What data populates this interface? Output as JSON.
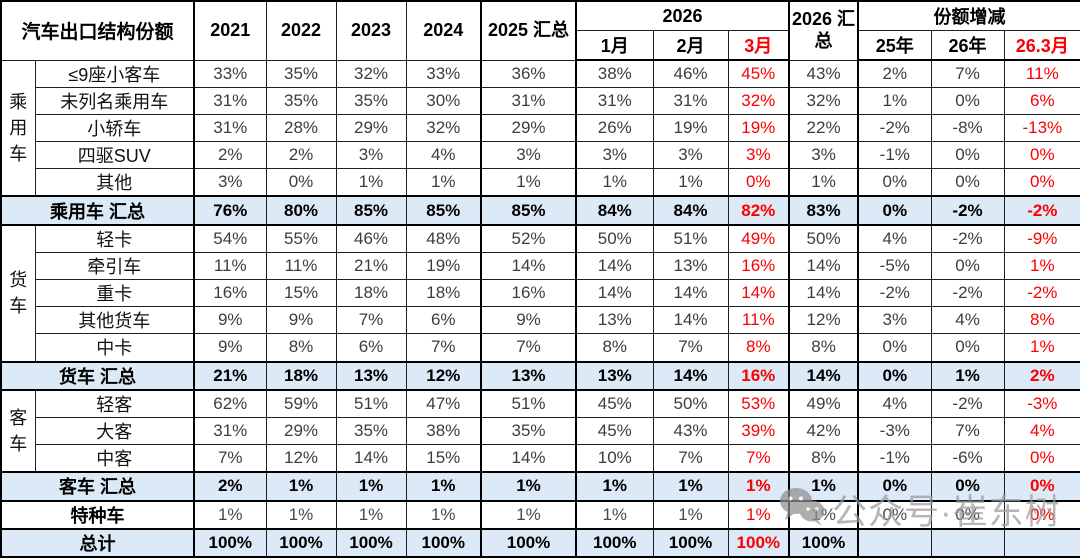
{
  "title": "汽车出口结构份额",
  "header": {
    "years": [
      "2021",
      "2022",
      "2023",
      "2024"
    ],
    "total2025": "2025 汇总",
    "group2026": "2026",
    "months": [
      "1月",
      "2月",
      "3月"
    ],
    "total2026": "2026 汇总",
    "change_group": "份额增减",
    "change_cols": [
      "25年",
      "26年",
      "26.3月"
    ]
  },
  "sections": [
    {
      "category": "乘用车",
      "rows": [
        {
          "label": "≤9座小客车",
          "values": [
            "33%",
            "35%",
            "32%",
            "33%",
            "36%",
            "38%",
            "46%",
            "45%",
            "43%",
            "2%",
            "7%",
            "11%"
          ]
        },
        {
          "label": "未列名乘用车",
          "values": [
            "31%",
            "35%",
            "35%",
            "30%",
            "31%",
            "31%",
            "31%",
            "32%",
            "32%",
            "1%",
            "0%",
            "6%"
          ]
        },
        {
          "label": "小轿车",
          "values": [
            "31%",
            "28%",
            "29%",
            "32%",
            "29%",
            "26%",
            "19%",
            "19%",
            "22%",
            "-2%",
            "-8%",
            "-13%"
          ]
        },
        {
          "label": "四驱SUV",
          "values": [
            "2%",
            "2%",
            "3%",
            "4%",
            "3%",
            "3%",
            "3%",
            "3%",
            "3%",
            "-1%",
            "0%",
            "0%"
          ]
        },
        {
          "label": "其他",
          "values": [
            "3%",
            "0%",
            "1%",
            "1%",
            "1%",
            "1%",
            "1%",
            "0%",
            "1%",
            "0%",
            "0%",
            "0%"
          ]
        }
      ],
      "summary": {
        "label": "乘用车 汇总",
        "values": [
          "76%",
          "80%",
          "85%",
          "85%",
          "85%",
          "84%",
          "84%",
          "82%",
          "83%",
          "0%",
          "-2%",
          "-2%"
        ]
      }
    },
    {
      "category": "货车",
      "rows": [
        {
          "label": "轻卡",
          "values": [
            "54%",
            "55%",
            "46%",
            "48%",
            "52%",
            "50%",
            "51%",
            "49%",
            "50%",
            "4%",
            "-2%",
            "-9%"
          ]
        },
        {
          "label": "牵引车",
          "values": [
            "11%",
            "11%",
            "21%",
            "19%",
            "14%",
            "14%",
            "13%",
            "16%",
            "14%",
            "-5%",
            "0%",
            "1%"
          ]
        },
        {
          "label": "重卡",
          "values": [
            "16%",
            "15%",
            "18%",
            "18%",
            "16%",
            "14%",
            "14%",
            "14%",
            "14%",
            "-2%",
            "-2%",
            "-2%"
          ]
        },
        {
          "label": "其他货车",
          "values": [
            "9%",
            "9%",
            "7%",
            "6%",
            "9%",
            "13%",
            "14%",
            "11%",
            "12%",
            "3%",
            "4%",
            "8%"
          ]
        },
        {
          "label": "中卡",
          "values": [
            "9%",
            "8%",
            "6%",
            "7%",
            "7%",
            "8%",
            "7%",
            "8%",
            "8%",
            "0%",
            "0%",
            "1%"
          ]
        }
      ],
      "summary": {
        "label": "货车 汇总",
        "values": [
          "21%",
          "18%",
          "13%",
          "12%",
          "13%",
          "13%",
          "14%",
          "16%",
          "14%",
          "0%",
          "1%",
          "2%"
        ]
      }
    },
    {
      "category": "客车",
      "rows": [
        {
          "label": "轻客",
          "values": [
            "62%",
            "59%",
            "51%",
            "47%",
            "51%",
            "45%",
            "50%",
            "53%",
            "49%",
            "4%",
            "-2%",
            "-3%"
          ]
        },
        {
          "label": "大客",
          "values": [
            "31%",
            "29%",
            "35%",
            "38%",
            "35%",
            "45%",
            "43%",
            "39%",
            "42%",
            "-3%",
            "7%",
            "4%"
          ]
        },
        {
          "label": "中客",
          "values": [
            "7%",
            "12%",
            "14%",
            "15%",
            "14%",
            "10%",
            "7%",
            "7%",
            "8%",
            "-1%",
            "-6%",
            "0%"
          ]
        }
      ],
      "summary": {
        "label": "客车 汇总",
        "values": [
          "2%",
          "1%",
          "1%",
          "1%",
          "1%",
          "1%",
          "1%",
          "1%",
          "1%",
          "0%",
          "0%",
          "0%"
        ]
      }
    }
  ],
  "special_row": {
    "label": "特种车",
    "values": [
      "1%",
      "1%",
      "1%",
      "1%",
      "1%",
      "1%",
      "1%",
      "1%",
      "1%",
      "0%",
      "0%",
      "0%"
    ]
  },
  "total_row": {
    "label": "总计",
    "values": [
      "100%",
      "100%",
      "100%",
      "100%",
      "100%",
      "100%",
      "100%",
      "100%",
      "100%",
      "",
      "",
      ""
    ]
  },
  "watermark": {
    "icon": "wechat-icon",
    "text": "公众号·崔东树"
  },
  "colors": {
    "summary_bg": "#DCE9F6",
    "red": "#FB0000",
    "value_text": "#3D3D3D",
    "border": "#000000"
  }
}
